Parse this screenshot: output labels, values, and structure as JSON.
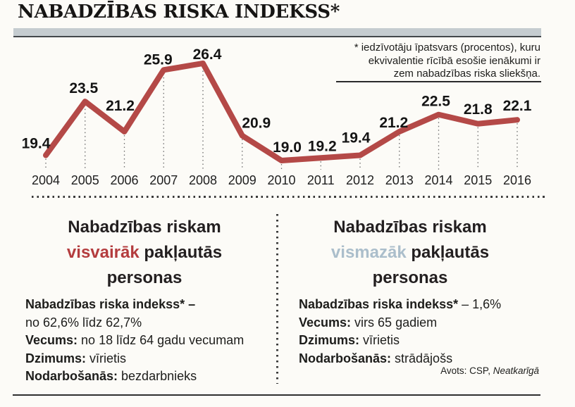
{
  "title": "NABADZĪBAS RISKA INDEKSS*",
  "footnote": {
    "lines": [
      "* iedzīvotāju īpatsvars (procentos), kuru",
      "ekvivalentie rīcībā esošie ienākumi ir",
      "zem nabadzības riska sliekšņa."
    ]
  },
  "chart_data": {
    "type": "line",
    "title": "NABADZĪBAS RISKA INDEKSS*",
    "x": [
      2004,
      2005,
      2006,
      2007,
      2008,
      2009,
      2010,
      2011,
      2012,
      2013,
      2014,
      2015,
      2016
    ],
    "values": [
      19.4,
      23.5,
      21.2,
      25.9,
      26.4,
      20.9,
      19.0,
      19.2,
      19.4,
      21.2,
      22.5,
      21.8,
      22.1
    ],
    "xlabel": "",
    "ylabel": "",
    "ylim": [
      18.5,
      27
    ],
    "grid": false,
    "data_labels": true,
    "legend": "none",
    "line_color": "#b44947",
    "dropline_style": "dotted"
  },
  "panels": {
    "left": {
      "heading": {
        "line1": "Nabadzības riskam",
        "highlight": "visvairāk",
        "rest": " pakļautās",
        "line3": "personas"
      },
      "rows": [
        {
          "label": "Nabadzības riska indekss* –",
          "value": ""
        },
        {
          "label": "",
          "value": "no 62,6% līdz 62,7%"
        },
        {
          "label": "Vecums:",
          "value": " no 18 līdz 64 gadu vecumam"
        },
        {
          "label": "Dzimums:",
          "value": " vīrietis"
        },
        {
          "label": "Nodarbošanās:",
          "value": " bezdarbnieks"
        }
      ]
    },
    "right": {
      "heading": {
        "line1": "Nabadzības riskam",
        "highlight": "vismazāk",
        "rest": " pakļautās",
        "line3": "personas"
      },
      "rows": [
        {
          "label": "Nabadzības riska indekss*",
          "value": " – 1,6%"
        },
        {
          "label": "Vecums:",
          "value": " virs 65 gadiem"
        },
        {
          "label": "Dzimums:",
          "value": " vīrietis"
        },
        {
          "label": "Nodarbošanās:",
          "value": " strādājošs"
        }
      ]
    }
  },
  "source": {
    "prefix": "Avots: CSP, ",
    "publication": "Neatkarīgā"
  },
  "colors": {
    "background": "#fcfbf7",
    "line_red": "#b44947",
    "highlight_red": "#b43c3e",
    "highlight_blue": "#abbecb",
    "gray_bar": "#c5ccd0",
    "text_dark": "#1d1d1b"
  }
}
